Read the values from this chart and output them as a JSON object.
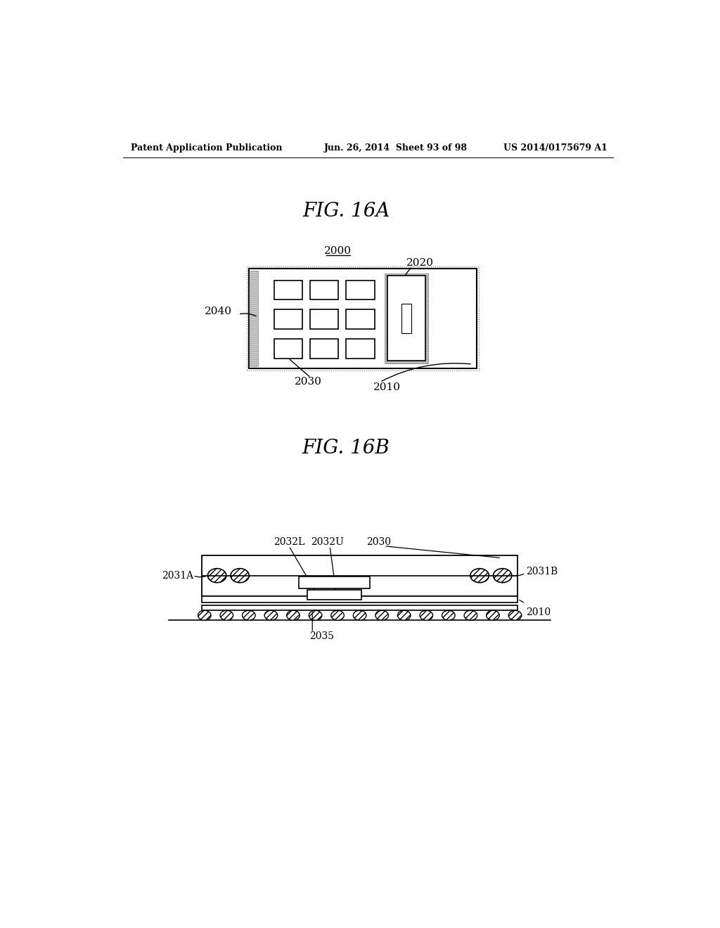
{
  "bg_color": "#ffffff",
  "header_left": "Patent Application Publication",
  "header_center": "Jun. 26, 2014  Sheet 93 of 98",
  "header_right": "US 2014/0175679 A1",
  "fig16a_title": "FIG. 16A",
  "fig16b_title": "FIG. 16B",
  "label_2000": "2000",
  "label_2010": "2010",
  "label_2020": "2020",
  "label_2030": "2030",
  "label_2040": "2040",
  "label_2031A": "2031A",
  "label_2031B": "2031B",
  "label_2032L": "2032L",
  "label_2032U": "2032U",
  "label_2035": "2035"
}
